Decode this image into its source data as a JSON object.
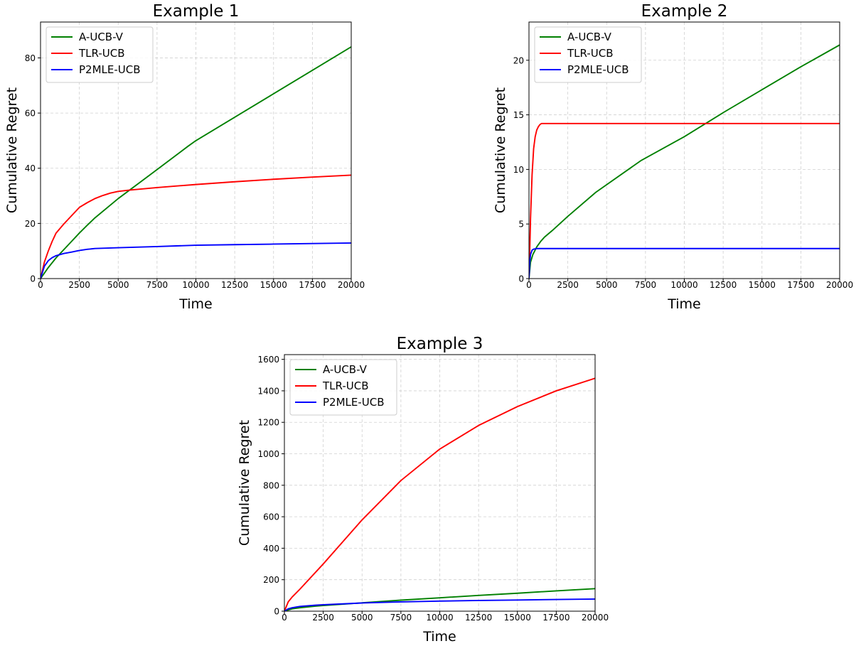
{
  "chart_data": [
    {
      "type": "line",
      "title": "Example 1",
      "xlabel": "Time",
      "ylabel": "Cumulative Regret",
      "xlim": [
        0,
        20000
      ],
      "ylim": [
        0,
        93
      ],
      "xticks": [
        0,
        2500,
        5000,
        7500,
        10000,
        12500,
        15000,
        17500,
        20000
      ],
      "yticks": [
        0,
        20,
        40,
        60,
        80
      ],
      "grid": true,
      "legend": "top-left",
      "series": [
        {
          "name": "A-UCB-V",
          "color": "#008000",
          "x": [
            0,
            500,
            1000,
            1500,
            2000,
            2500,
            3000,
            3500,
            5000,
            7500,
            9500,
            10000,
            12500,
            15000,
            17500,
            20000
          ],
          "y": [
            0,
            4,
            7.5,
            10.5,
            13.5,
            16.5,
            19.3,
            22,
            29,
            39.5,
            48,
            50,
            58.5,
            67,
            75.5,
            84
          ]
        },
        {
          "name": "TLR-UCB",
          "color": "#ff0000",
          "x": [
            0,
            250,
            500,
            750,
            1000,
            1500,
            2000,
            2500,
            3000,
            3500,
            4000,
            4500,
            5000,
            5750,
            7500,
            10000,
            12500,
            15000,
            17500,
            20000
          ],
          "y": [
            0,
            6,
            10,
            13.5,
            16.5,
            19.8,
            22.8,
            25.8,
            27.5,
            29,
            30.1,
            31,
            31.6,
            32.1,
            33,
            34.1,
            35.1,
            36,
            36.8,
            37.5
          ]
        },
        {
          "name": "P2MLE-UCB",
          "color": "#0000ff",
          "x": [
            0,
            250,
            500,
            750,
            1000,
            1500,
            2000,
            2500,
            3000,
            3500,
            5000,
            7500,
            10000,
            12500,
            15000,
            17500,
            20000
          ],
          "y": [
            0,
            4.5,
            6.5,
            7.6,
            8.3,
            9.1,
            9.6,
            10.2,
            10.6,
            10.9,
            11.2,
            11.6,
            12.1,
            12.3,
            12.5,
            12.7,
            12.9
          ]
        }
      ]
    },
    {
      "type": "line",
      "title": "Example 2",
      "xlabel": "Time",
      "ylabel": "Cumulative Regret",
      "xlim": [
        0,
        20000
      ],
      "ylim": [
        0,
        23.5
      ],
      "xticks": [
        0,
        2500,
        5000,
        7500,
        10000,
        12500,
        15000,
        17500,
        20000
      ],
      "yticks": [
        0,
        5,
        10,
        15,
        20
      ],
      "grid": true,
      "legend": "top-left",
      "series": [
        {
          "name": "A-UCB-V",
          "color": "#008000",
          "x": [
            0,
            100,
            250,
            500,
            750,
            1000,
            1500,
            2500,
            4300,
            7200,
            10000,
            12500,
            15000,
            17500,
            20000
          ],
          "y": [
            0,
            1.5,
            2.2,
            2.9,
            3.4,
            3.8,
            4.4,
            5.7,
            7.9,
            10.8,
            13,
            15.2,
            17.3,
            19.4,
            21.4
          ]
        },
        {
          "name": "TLR-UCB",
          "color": "#ff0000",
          "x": [
            0,
            50,
            100,
            200,
            300,
            400,
            500,
            600,
            700,
            800,
            1000,
            2500,
            5000,
            10000,
            15000,
            20000
          ],
          "y": [
            0,
            2.5,
            5.5,
            9.5,
            11.9,
            13.0,
            13.6,
            13.9,
            14.1,
            14.2,
            14.2,
            14.2,
            14.2,
            14.2,
            14.2,
            14.2
          ]
        },
        {
          "name": "P2MLE-UCB",
          "color": "#0000ff",
          "x": [
            0,
            50,
            100,
            200,
            300,
            500,
            1000,
            5000,
            10000,
            15000,
            20000
          ],
          "y": [
            0,
            1.5,
            2.2,
            2.6,
            2.7,
            2.75,
            2.75,
            2.75,
            2.75,
            2.75,
            2.75
          ]
        }
      ]
    },
    {
      "type": "line",
      "title": "Example 3",
      "xlabel": "Time",
      "ylabel": "Cumulative Regret",
      "xlim": [
        0,
        20000
      ],
      "ylim": [
        0,
        1630
      ],
      "xticks": [
        0,
        2500,
        5000,
        7500,
        10000,
        12500,
        15000,
        17500,
        20000
      ],
      "yticks": [
        0,
        200,
        400,
        600,
        800,
        1000,
        1200,
        1400,
        1600
      ],
      "grid": true,
      "legend": "top-left",
      "series": [
        {
          "name": "A-UCB-V",
          "color": "#008000",
          "x": [
            0,
            500,
            1000,
            2000,
            2500,
            5000,
            7500,
            10000,
            12500,
            15000,
            17500,
            20000
          ],
          "y": [
            0,
            15,
            22,
            32,
            36,
            53,
            70,
            85,
            100,
            114,
            129,
            143
          ]
        },
        {
          "name": "TLR-UCB",
          "color": "#ff0000",
          "x": [
            0,
            250,
            500,
            1000,
            2500,
            5000,
            7500,
            10000,
            12500,
            15000,
            17500,
            20000
          ],
          "y": [
            0,
            60,
            90,
            140,
            300,
            580,
            830,
            1030,
            1180,
            1300,
            1400,
            1480
          ]
        },
        {
          "name": "P2MLE-UCB",
          "color": "#0000ff",
          "x": [
            0,
            250,
            500,
            1000,
            2000,
            2500,
            5000,
            7500,
            10000,
            12500,
            15000,
            17500,
            20000
          ],
          "y": [
            0,
            15,
            22,
            30,
            38,
            41,
            52,
            59,
            64,
            68,
            71,
            74,
            77
          ]
        }
      ]
    }
  ]
}
